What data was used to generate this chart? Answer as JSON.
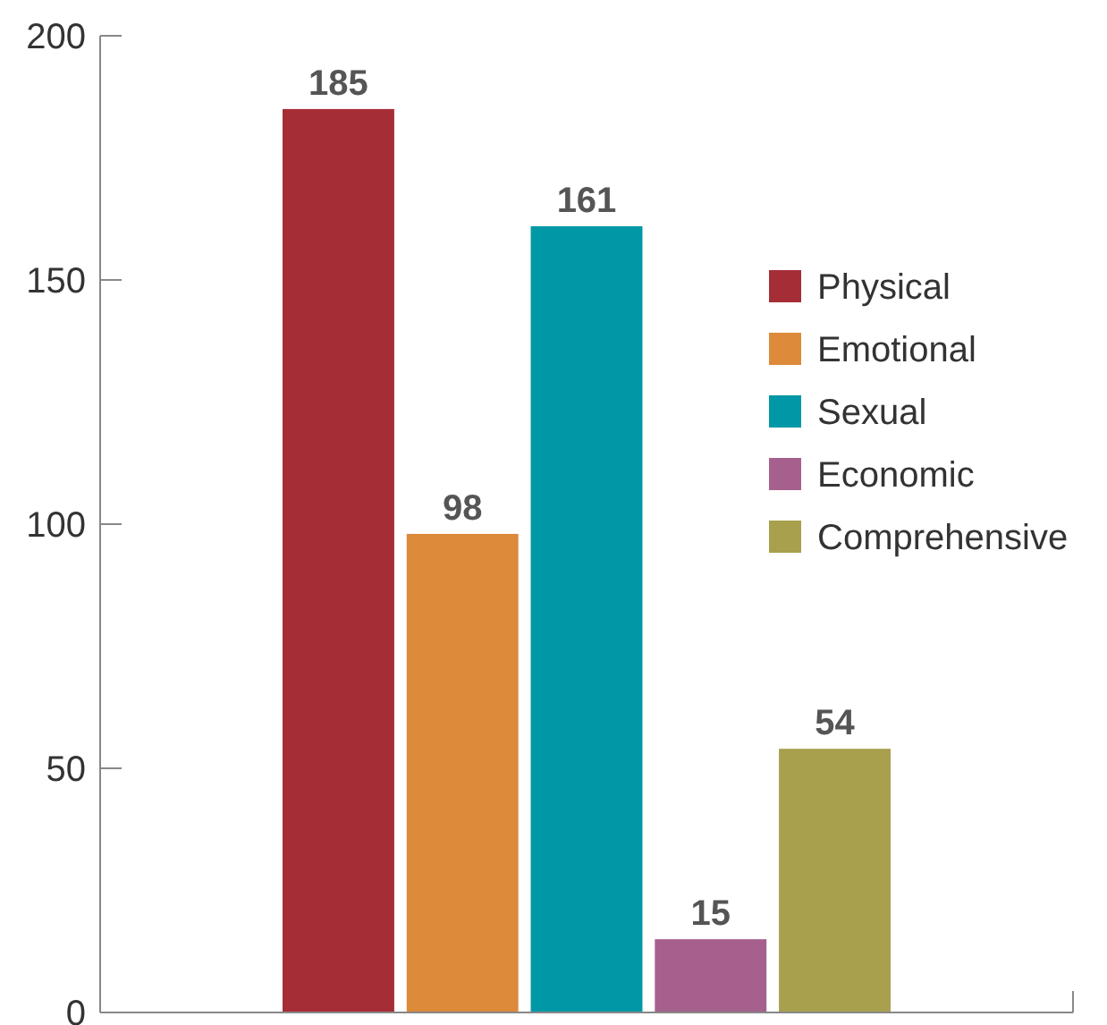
{
  "chart_data": {
    "type": "bar",
    "categories": [
      null
    ],
    "series": [
      {
        "name": "Physical",
        "color": "#a52d35",
        "values": [
          185
        ]
      },
      {
        "name": "Emotional",
        "color": "#dd8a3a",
        "values": [
          98
        ]
      },
      {
        "name": "Sexual",
        "color": "#0098a6",
        "values": [
          161
        ]
      },
      {
        "name": "Economic",
        "color": "#a6608e",
        "values": [
          15
        ]
      },
      {
        "name": "Comprehensive",
        "color": "#a8a04d",
        "values": [
          54
        ]
      }
    ],
    "ylim": [
      0,
      200
    ],
    "yticks": [
      0,
      50,
      100,
      150,
      200
    ],
    "data_labels": true,
    "legend": "right",
    "tick_labels": "y",
    "grid": false
  }
}
